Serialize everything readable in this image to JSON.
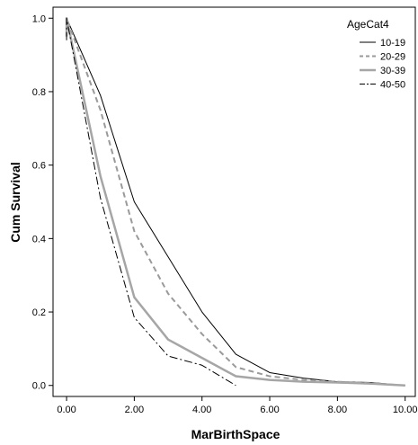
{
  "chart_data": {
    "type": "line",
    "xlabel": "MarBirthSpace",
    "ylabel": "Cum Survival",
    "xlim": [
      -0.4,
      10.3
    ],
    "ylim": [
      -0.03,
      1.03
    ],
    "x_ticks": [
      "0.00",
      "2.00",
      "4.00",
      "6.00",
      "8.00",
      "10.00"
    ],
    "y_ticks": [
      "0.0",
      "0.2",
      "0.4",
      "0.6",
      "0.8",
      "1.0"
    ],
    "legend_title": "AgeCat4",
    "legend_position": "top-right",
    "grid": false,
    "series": [
      {
        "name": "10-19",
        "color": "#000000",
        "style": "solid-thin",
        "x": [
          0,
          0,
          1,
          2,
          3,
          4,
          5,
          6,
          7,
          8,
          9,
          10
        ],
        "y": [
          0.95,
          1.0,
          0.79,
          0.5,
          0.35,
          0.2,
          0.085,
          0.035,
          0.02,
          0.01,
          0.008,
          0.0
        ]
      },
      {
        "name": "20-29",
        "color": "#9a9a9a",
        "style": "dashed",
        "x": [
          0,
          0,
          1,
          2,
          3,
          4,
          5,
          6,
          7,
          8,
          9,
          10
        ],
        "y": [
          0.96,
          1.0,
          0.75,
          0.42,
          0.25,
          0.14,
          0.05,
          0.025,
          0.015,
          0.01,
          0.006,
          0.0
        ]
      },
      {
        "name": "30-39",
        "color": "#a6a6a6",
        "style": "solid-thick",
        "x": [
          0,
          0,
          1,
          2,
          3,
          4,
          5,
          6,
          7,
          8,
          9,
          10
        ],
        "y": [
          0.95,
          1.0,
          0.57,
          0.24,
          0.125,
          0.075,
          0.025,
          0.015,
          0.01,
          0.008,
          0.005,
          0.0
        ]
      },
      {
        "name": "40-50",
        "color": "#000000",
        "style": "dashdot",
        "x": [
          0,
          0,
          1,
          2,
          3,
          4,
          5
        ],
        "y": [
          0.94,
          1.0,
          0.51,
          0.185,
          0.08,
          0.055,
          0.0
        ]
      }
    ]
  }
}
